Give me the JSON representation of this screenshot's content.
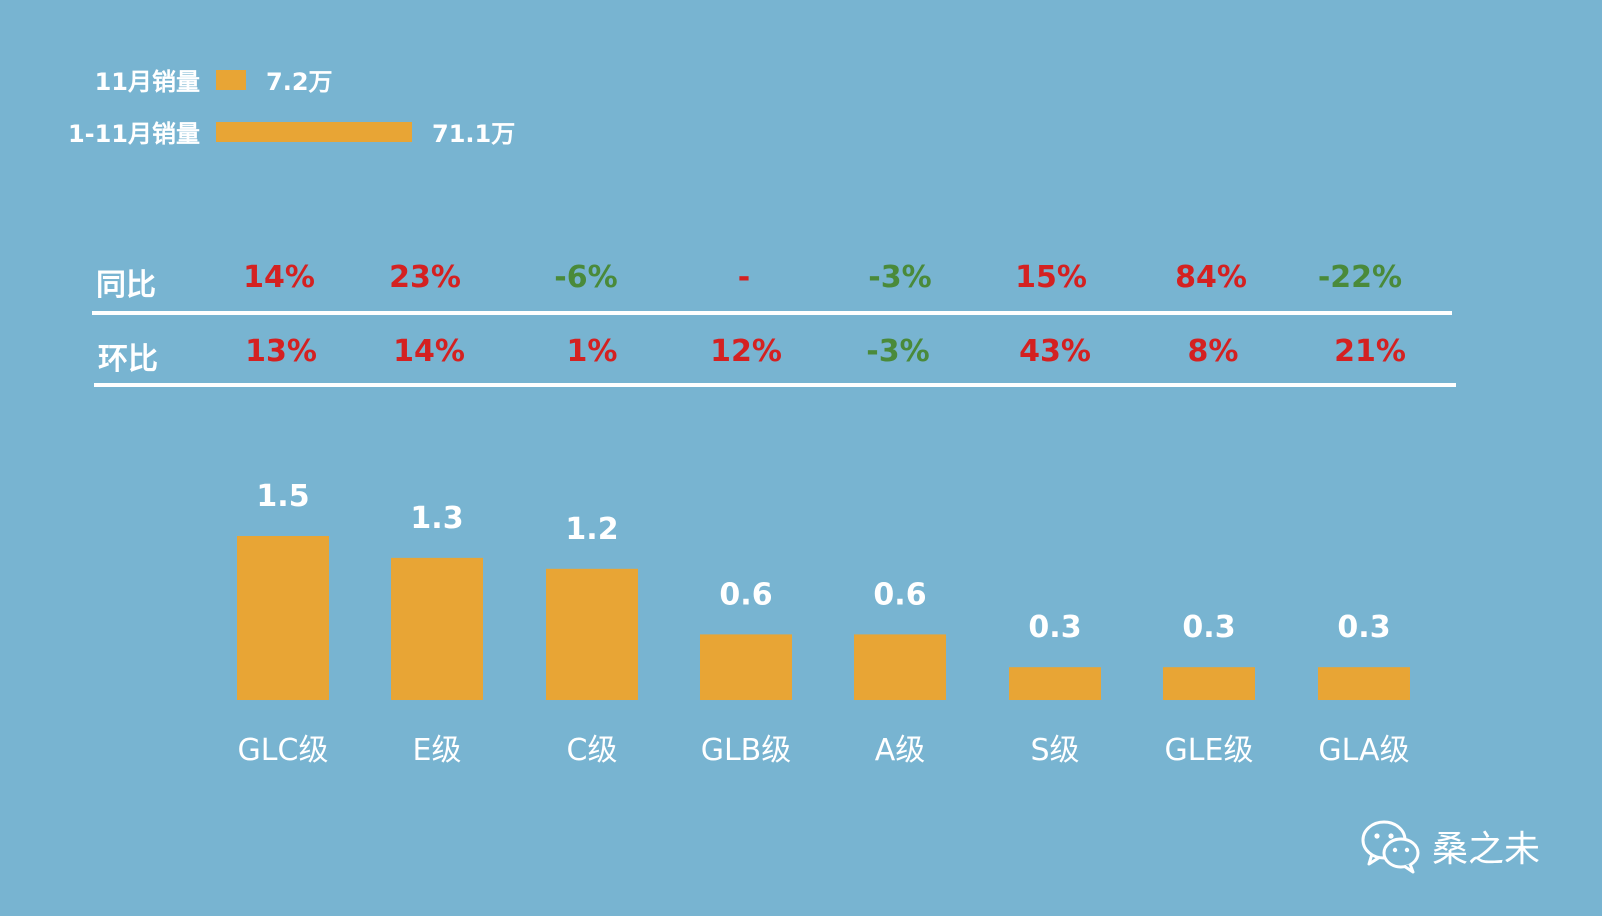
{
  "legend": {
    "monthly": {
      "label": "11月销量",
      "value": "7.2万",
      "share": 7.2
    },
    "ytd": {
      "label": "1-11月销量",
      "value": "71.1万",
      "share": 71.1
    },
    "bar_color": "#e8a535"
  },
  "rows": {
    "yoy": {
      "label": "同比",
      "values": [
        {
          "text": "14%",
          "color": "#d42121"
        },
        {
          "text": "23%",
          "color": "#d42121"
        },
        {
          "text": "-6%",
          "color": "#4a8a3a"
        },
        {
          "text": "-",
          "color": "#d42121"
        },
        {
          "text": "-3%",
          "color": "#4a8a3a"
        },
        {
          "text": "15%",
          "color": "#d42121"
        },
        {
          "text": "84%",
          "color": "#d42121"
        },
        {
          "text": "-22%",
          "color": "#4a8a3a"
        }
      ]
    },
    "mom": {
      "label": "环比",
      "values": [
        {
          "text": "13%",
          "color": "#d42121"
        },
        {
          "text": "14%",
          "color": "#d42121"
        },
        {
          "text": "1%",
          "color": "#d42121"
        },
        {
          "text": "12%",
          "color": "#d42121"
        },
        {
          "text": "-3%",
          "color": "#4a8a3a"
        },
        {
          "text": "43%",
          "color": "#d42121"
        },
        {
          "text": "8%",
          "color": "#d42121"
        },
        {
          "text": "21%",
          "color": "#d42121"
        }
      ]
    }
  },
  "chart_data": {
    "type": "bar",
    "categories": [
      "GLC级",
      "E级",
      "C级",
      "GLB级",
      "A级",
      "S级",
      "GLE级",
      "GLA级"
    ],
    "values": [
      1.5,
      1.3,
      1.2,
      0.6,
      0.6,
      0.3,
      0.3,
      0.3
    ],
    "labels": [
      "1.5",
      "1.3",
      "1.2",
      "0.6",
      "0.6",
      "0.3",
      "0.3",
      "0.3"
    ],
    "bar_color": "#e8a535",
    "title": "",
    "xlabel": "",
    "ylabel": "",
    "ylim": [
      0,
      1.5
    ]
  },
  "watermark": {
    "text": "桑之未",
    "icon": "wechat-icon"
  }
}
